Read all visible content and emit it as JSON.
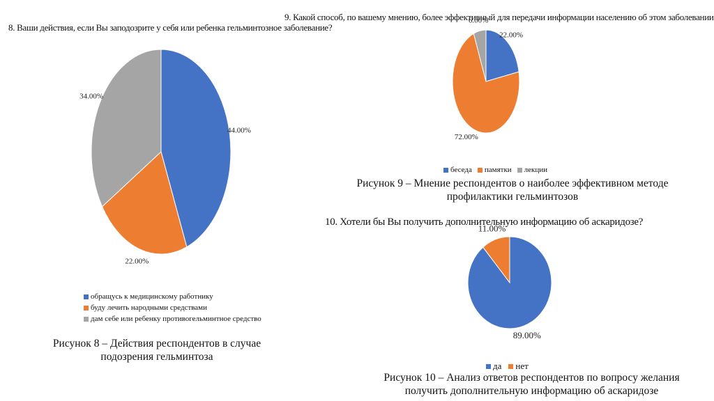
{
  "colors": {
    "blue": "#4472C4",
    "orange": "#ED7D31",
    "gray": "#A5A5A5"
  },
  "chart_data": [
    {
      "type": "pie",
      "title": "8. Ваши действия, если Вы заподозрите у себя или ребенка гельминтозное заболевание?",
      "categories": [
        "обращусь к медицинскому работнику",
        "буду лечить народными средствами",
        "дам себе или ребенку противогельминтное средство"
      ],
      "values": [
        44,
        22,
        34
      ],
      "labels": [
        "44.00%",
        "22.00%",
        "34.00%"
      ],
      "legend": "bottom",
      "caption": "Рисунок 8 – Действия респондентов в случае подозрения гельминтоза"
    },
    {
      "type": "pie",
      "title": "9. Какой способ, по вашему мнению, более эффективный для передачи информации населению об этом заболевании?",
      "categories": [
        "беседа",
        "памятки",
        "лекции"
      ],
      "values": [
        22,
        72,
        6
      ],
      "labels": [
        "22.00%",
        "72.00%",
        "6.00%"
      ],
      "legend": "bottom",
      "caption": "Рисунок 9 – Мнение респондентов о наиболее эффективном методе профилактики гельминтозов"
    },
    {
      "type": "pie",
      "title": "10. Хотели бы Вы получить дополнительную информацию об аскаридозе?",
      "categories": [
        "да",
        "нет"
      ],
      "values": [
        89,
        11
      ],
      "labels": [
        "89.00%",
        "11.00%"
      ],
      "legend": "bottom",
      "caption": "Рисунок 10 – Анализ ответов респондентов по вопросу желания получить дополнительную информацию об аскаридозе"
    }
  ]
}
